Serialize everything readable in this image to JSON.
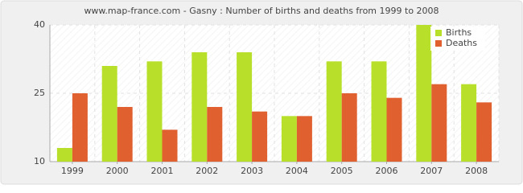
{
  "chart_data": {
    "type": "bar",
    "title": "www.map-france.com - Gasny : Number of births and deaths from 1999 to 2008",
    "categories": [
      "1999",
      "2000",
      "2001",
      "2002",
      "2003",
      "2004",
      "2005",
      "2006",
      "2007",
      "2008"
    ],
    "series": [
      {
        "name": "Births",
        "color": "#b8e02a",
        "values": [
          13,
          31,
          32,
          34,
          34,
          20,
          32,
          32,
          40,
          27
        ]
      },
      {
        "name": "Deaths",
        "color": "#e06030",
        "values": [
          25,
          22,
          17,
          22,
          21,
          20,
          25,
          24,
          27,
          23
        ]
      }
    ],
    "ylim": [
      10,
      40
    ],
    "yticks": [
      10,
      25,
      40
    ],
    "grid": true,
    "legend": "top-right"
  }
}
